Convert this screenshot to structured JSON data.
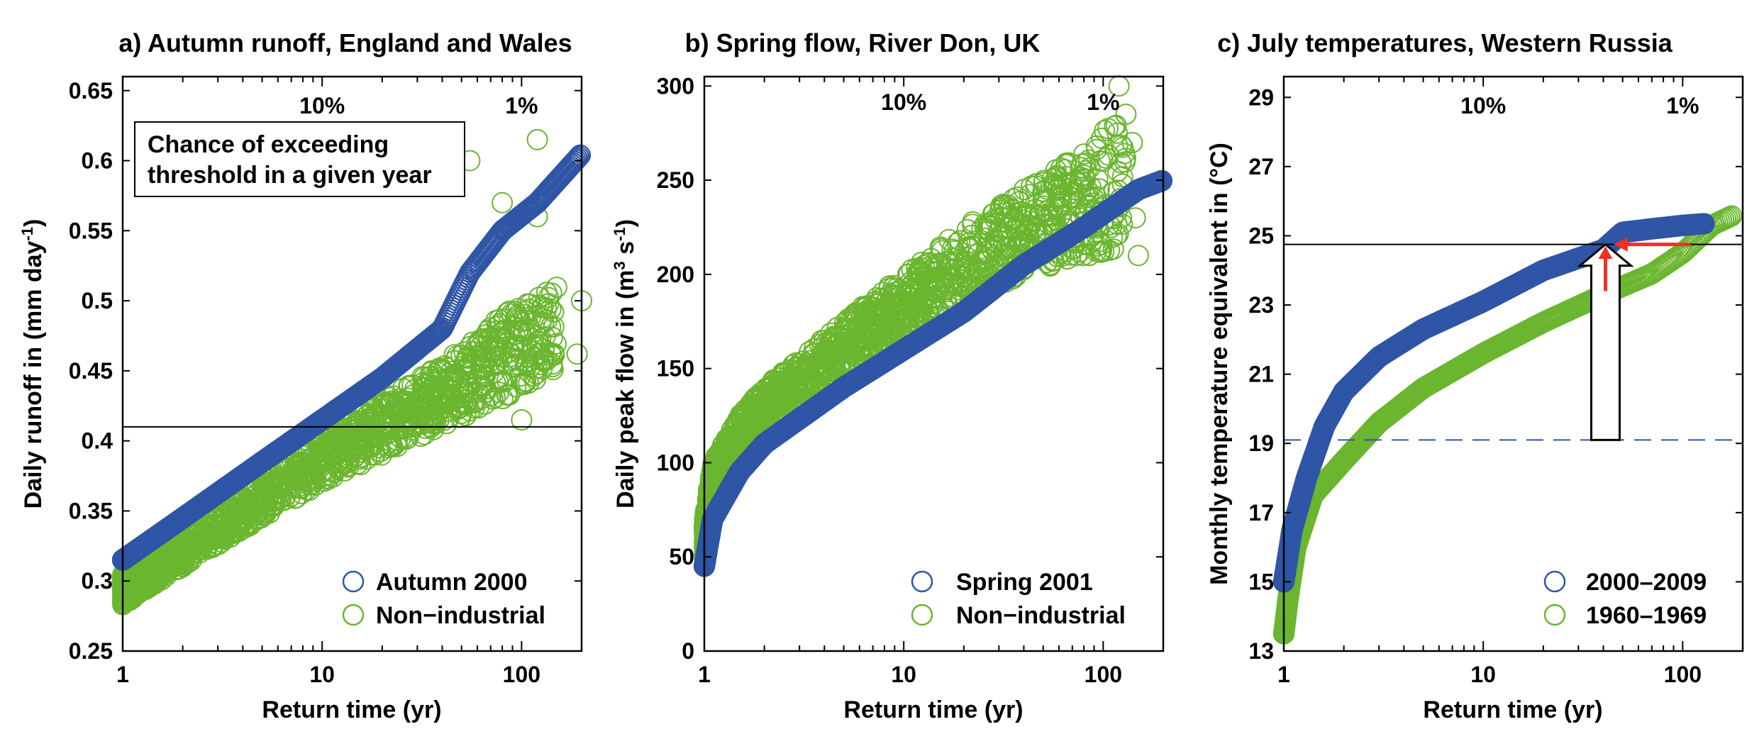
{
  "chart_data": [
    {
      "type": "scatter",
      "title": "a) Autumn runoff, England and Wales",
      "xlabel": "Return time (yr)",
      "ylabel": "Daily runoff in (mm day",
      "ylabel_sup": "-1",
      "ylabel_end": ")",
      "xscale": "log",
      "xlim": [
        1,
        200
      ],
      "ylim": [
        0.25,
        0.66
      ],
      "xticks": [
        1,
        10,
        100
      ],
      "xtick_labels": [
        "1",
        "10",
        "100"
      ],
      "yticks": [
        0.25,
        0.3,
        0.35,
        0.4,
        0.45,
        0.5,
        0.55,
        0.6,
        0.65
      ],
      "ytick_labels": [
        "0.25",
        "0.3",
        "0.35",
        "0.4",
        "0.45",
        "0.5",
        "0.55",
        "0.6",
        "0.65"
      ],
      "pct_labels": [
        {
          "x": 10,
          "text": "10%"
        },
        {
          "x": 100,
          "text": "1%"
        }
      ],
      "annotation": [
        "Chance of exceeding",
        "threshold in a given year"
      ],
      "hline": {
        "y": 0.41,
        "style": "solid"
      },
      "legend_position": "bottom-right",
      "series": [
        {
          "name": "Autumn 2000",
          "color": "#2e55a6",
          "points": [
            [
              1,
              0.315
            ],
            [
              2,
              0.345
            ],
            [
              5,
              0.385
            ],
            [
              10,
              0.415
            ],
            [
              20,
              0.445
            ],
            [
              40,
              0.48
            ],
            [
              55,
              0.52
            ],
            [
              80,
              0.55
            ],
            [
              120,
              0.57
            ],
            [
              200,
              0.605
            ]
          ]
        },
        {
          "name": "Non−industrial",
          "color": "#6ab62f",
          "points": [
            [
              1,
              0.283
            ],
            [
              2,
              0.31
            ],
            [
              5,
              0.345
            ],
            [
              10,
              0.37
            ],
            [
              20,
              0.39
            ],
            [
              40,
              0.41
            ],
            [
              80,
              0.43
            ],
            [
              150,
              0.45
            ]
          ],
          "upper": [
            [
              1,
              0.305
            ],
            [
              2,
              0.335
            ],
            [
              5,
              0.375
            ],
            [
              10,
              0.405
            ],
            [
              20,
              0.43
            ],
            [
              40,
              0.455
            ],
            [
              80,
              0.49
            ],
            [
              150,
              0.51
            ]
          ],
          "outliers": [
            [
              45,
              0.595
            ],
            [
              55,
              0.6
            ],
            [
              80,
              0.57
            ],
            [
              120,
              0.615
            ],
            [
              120,
              0.56
            ],
            [
              200,
              0.5
            ],
            [
              190,
              0.462
            ],
            [
              100,
              0.415
            ]
          ]
        }
      ]
    },
    {
      "type": "scatter",
      "title": "b) Spring flow, River Don, UK",
      "xlabel": "Return time (yr)",
      "ylabel": "Daily peak flow in (m",
      "ylabel_sup1": "3",
      "ylabel_mid": " s",
      "ylabel_sup2": "-1",
      "ylabel_end": ")",
      "xscale": "log",
      "xlim": [
        1,
        200
      ],
      "ylim": [
        0,
        305
      ],
      "xticks": [
        1,
        10,
        100
      ],
      "xtick_labels": [
        "1",
        "10",
        "100"
      ],
      "yticks": [
        0,
        50,
        100,
        150,
        200,
        250,
        300
      ],
      "ytick_labels": [
        "0",
        "50",
        "100",
        "150",
        "200",
        "250",
        "300"
      ],
      "pct_labels": [
        {
          "x": 10,
          "text": "10%"
        },
        {
          "x": 100,
          "text": "1%"
        }
      ],
      "legend_position": "bottom-right",
      "series": [
        {
          "name": "Spring 2001",
          "color": "#2e55a6",
          "points": [
            [
              1,
              45
            ],
            [
              1.1,
              70
            ],
            [
              1.5,
              95
            ],
            [
              2,
              110
            ],
            [
              5,
              140
            ],
            [
              10,
              160
            ],
            [
              20,
              180
            ],
            [
              40,
              205
            ],
            [
              80,
              225
            ],
            [
              150,
              245
            ],
            [
              200,
              250
            ]
          ]
        },
        {
          "name": "Non−industrial",
          "color": "#6ab62f",
          "points": [
            [
              1,
              48
            ],
            [
              1.1,
              75
            ],
            [
              1.5,
              100
            ],
            [
              2,
              115
            ],
            [
              5,
              145
            ],
            [
              10,
              165
            ],
            [
              20,
              185
            ],
            [
              40,
              200
            ],
            [
              80,
              210
            ]
          ],
          "upper": [
            [
              1,
              70
            ],
            [
              1.1,
              100
            ],
            [
              1.5,
              125
            ],
            [
              2,
              140
            ],
            [
              5,
              175
            ],
            [
              10,
              200
            ],
            [
              20,
              225
            ],
            [
              40,
              245
            ],
            [
              80,
              265
            ],
            [
              130,
              290
            ]
          ],
          "outliers": [
            [
              120,
              300
            ],
            [
              130,
              285
            ],
            [
              140,
              270
            ],
            [
              145,
              230
            ],
            [
              150,
              210
            ],
            [
              110,
              225
            ],
            [
              100,
              260
            ]
          ]
        }
      ]
    },
    {
      "type": "scatter",
      "title": "c) July temperatures, Western Russia",
      "xlabel": "Return time (yr)",
      "ylabel": "Monthly temperature equivalent in (°C)",
      "xscale": "log",
      "xlim": [
        1,
        200
      ],
      "ylim": [
        13,
        29.6
      ],
      "xticks": [
        1,
        10,
        100
      ],
      "xtick_labels": [
        "1",
        "10",
        "100"
      ],
      "yticks": [
        13,
        15,
        17,
        19,
        21,
        23,
        25,
        27,
        29
      ],
      "ytick_labels": [
        "13",
        "15",
        "17",
        "19",
        "21",
        "23",
        "25",
        "27",
        "29"
      ],
      "pct_labels": [
        {
          "x": 10,
          "text": "10%"
        },
        {
          "x": 100,
          "text": "1%"
        }
      ],
      "hline": {
        "y": 24.75,
        "style": "solid"
      },
      "hline2": {
        "y": 19.1,
        "style": "dashed"
      },
      "legend_position": "bottom-right",
      "series": [
        {
          "name": "2000–2009",
          "color": "#2e55a6",
          "points": [
            [
              1,
              15
            ],
            [
              1.1,
              16.5
            ],
            [
              1.3,
              18
            ],
            [
              1.6,
              19.5
            ],
            [
              2,
              20.5
            ],
            [
              3,
              21.5
            ],
            [
              5,
              22.3
            ],
            [
              10,
              23.1
            ],
            [
              20,
              24
            ],
            [
              40,
              24.6
            ],
            [
              50,
              25.1
            ],
            [
              70,
              25.2
            ],
            [
              100,
              25.3
            ],
            [
              130,
              25.35
            ]
          ]
        },
        {
          "name": "1960–1969",
          "color": "#6ab62f",
          "points": [
            [
              1,
              13.5
            ],
            [
              1.05,
              14.5
            ],
            [
              1.15,
              16
            ],
            [
              1.4,
              17.5
            ],
            [
              2,
              18.5
            ],
            [
              3,
              19.6
            ],
            [
              5,
              20.6
            ],
            [
              10,
              21.6
            ],
            [
              20,
              22.5
            ],
            [
              40,
              23.3
            ],
            [
              70,
              23.9
            ],
            [
              100,
              24.5
            ],
            [
              140,
              25.3
            ],
            [
              180,
              25.6
            ]
          ]
        }
      ],
      "arrows": [
        {
          "type": "block",
          "x": 41,
          "y_from": 19.1,
          "y_to": 24.75,
          "color": "#000000"
        },
        {
          "type": "red",
          "from": [
            41,
            23.4
          ],
          "to": [
            41,
            24.7
          ],
          "color": "#ee3322"
        },
        {
          "type": "red",
          "from": [
            110,
            24.75
          ],
          "to": [
            45,
            24.75
          ],
          "color": "#ee3322"
        }
      ]
    }
  ]
}
